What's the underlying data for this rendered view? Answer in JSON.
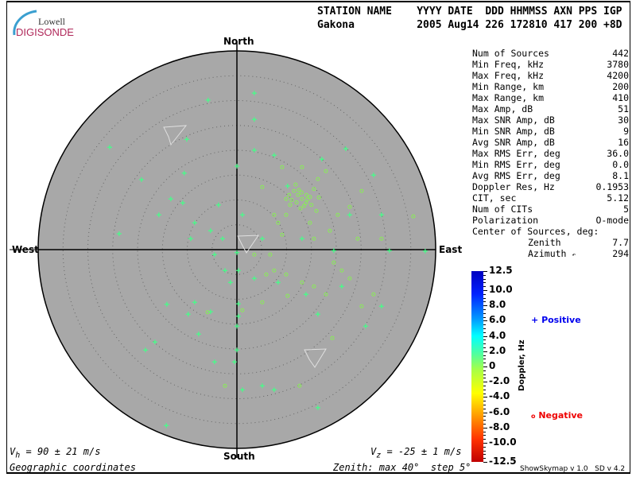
{
  "logo": {
    "line1": "Lowell",
    "line2": "DIGISONDE"
  },
  "header": {
    "labels": "STATION NAME    YYYY DATE  DDD HHMMSS AXN PPS IGP",
    "values": "Gakona          2005 Aug14 226 172810 417 200 +8D"
  },
  "stats": [
    {
      "label": "Num of Sources",
      "value": "442"
    },
    {
      "label": "Min Freq, kHz",
      "value": "3780"
    },
    {
      "label": "Max Freq, kHz",
      "value": "4200"
    },
    {
      "label": "Min Range, km",
      "value": "200"
    },
    {
      "label": "Max Range, km",
      "value": "410"
    },
    {
      "label": "Max Amp, dB",
      "value": "51"
    },
    {
      "label": "Max SNR Amp, dB",
      "value": "30"
    },
    {
      "label": "Min SNR Amp, dB",
      "value": "9"
    },
    {
      "label": "Avg SNR Amp, dB",
      "value": "16"
    },
    {
      "label": "Max RMS Err, deg",
      "value": "36.0"
    },
    {
      "label": "Min RMS Err, deg",
      "value": "0.0"
    },
    {
      "label": "Avg RMS Err, deg",
      "value": "8.1"
    },
    {
      "label": "Doppler Res, Hz",
      "value": "0.1953"
    },
    {
      "label": "CIT, sec",
      "value": "5.12"
    },
    {
      "label": "Num of CITs",
      "value": "5"
    },
    {
      "label": "Polarization",
      "value": "O-mode"
    }
  ],
  "center": {
    "title": "Center of Sources, deg:",
    "zenith_label": "Zenith",
    "zenith": "7.7",
    "azimuth_label": "Azimuth",
    "azimuth": "294"
  },
  "footer": {
    "vh": "= 90 ± 21 m/s",
    "vh_sym": "V",
    "vh_sub": "h",
    "vz": "= -25 ± 1 m/s",
    "vz_sym": "V",
    "vz_sub": "z",
    "coords": "Geographic coordinates",
    "zenith_info": "Zenith: max 40°  step 5°",
    "version": "ShowSkymap v 1.0   SD v 4.2"
  },
  "chart_data": {
    "type": "scatter",
    "projection": "polar sky map (east/north zenith-angle components, deg)",
    "directions": {
      "north": "North",
      "south": "South",
      "east": "East",
      "west": "West"
    },
    "zenith_max": 40,
    "zenith_step": 5,
    "colorbar": {
      "label": "Doppler, Hz",
      "range": [
        -12.5,
        12.5
      ],
      "ticks": [
        "12.5",
        "10.0",
        "8.0",
        "6.0",
        "4.0",
        "2.0",
        "0",
        "-2.0",
        "-4.0",
        "-6.0",
        "-8.0",
        "-10.0",
        "-12.5"
      ]
    },
    "legend": {
      "positive": "Positive",
      "negative": "Negative",
      "positive_color": "#0000ee",
      "negative_color": "#ee0000"
    },
    "colors": {
      "disk": "#a8a8a8",
      "positive_point": "#44ff88",
      "negative_point": "#88ee55"
    },
    "positive": [
      [
        -25.6,
        20.6
      ],
      [
        -19.2,
        14.1
      ],
      [
        -23.7,
        3.2
      ],
      [
        -15.7,
        7.0
      ],
      [
        -10.1,
        22.2
      ],
      [
        -5.8,
        30.1
      ],
      [
        3.5,
        31.5
      ],
      [
        0,
        16.8
      ],
      [
        3.5,
        20.0
      ],
      [
        7.5,
        19.0
      ],
      [
        10.2,
        12.8
      ],
      [
        0,
        -0.6
      ],
      [
        -5.3,
        3.8
      ],
      [
        -8.5,
        5.4
      ],
      [
        -2.9,
        2.2
      ],
      [
        -4.5,
        -1.0
      ],
      [
        -9.3,
        2.2
      ],
      [
        0.3,
        -4.2
      ],
      [
        -1.3,
        -6.6
      ],
      [
        3.5,
        -5.8
      ],
      [
        8.3,
        -6.6
      ],
      [
        5.1,
        2.2
      ],
      [
        -8.5,
        -10.6
      ],
      [
        -9.8,
        -13.0
      ],
      [
        -14.1,
        -11.0
      ],
      [
        -5.3,
        -12.5
      ],
      [
        0,
        -15.4
      ],
      [
        0,
        -20.2
      ],
      [
        -0.5,
        -22.6
      ],
      [
        -4.5,
        -22.6
      ],
      [
        1.1,
        -28.2
      ],
      [
        5.1,
        -27.4
      ],
      [
        7.5,
        -28.2
      ],
      [
        16.3,
        -31.8
      ],
      [
        -14.2,
        -35.4
      ],
      [
        -18.4,
        -20.2
      ],
      [
        -16.5,
        -18.6
      ],
      [
        -7.7,
        -17.0
      ],
      [
        -2.4,
        -4.2
      ],
      [
        13.1,
        2.2
      ],
      [
        19.5,
        -0.2
      ],
      [
        22.7,
        7.0
      ],
      [
        29.1,
        7.0
      ],
      [
        30.7,
        -0.2
      ],
      [
        37.9,
        -0.3
      ],
      [
        27.5,
        15.0
      ],
      [
        21.9,
        20.3
      ],
      [
        17.1,
        18.2
      ],
      [
        13.9,
        -9.0
      ],
      [
        16.3,
        -13.0
      ],
      [
        25.9,
        -15.4
      ],
      [
        29.1,
        -11.4
      ],
      [
        21.1,
        -7.4
      ],
      [
        3.5,
        26.2
      ],
      [
        -10.9,
        9.4
      ],
      [
        -13.3,
        10.2
      ],
      [
        -10.6,
        15.4
      ],
      [
        0.3,
        -10.9
      ],
      [
        0.3,
        -13.4
      ],
      [
        -3.7,
        9.0
      ],
      [
        1.1,
        7.0
      ]
    ],
    "negative": [
      [
        11.5,
        11.8
      ],
      [
        12.3,
        11.0
      ],
      [
        13.1,
        10.2
      ],
      [
        13.9,
        9.4
      ],
      [
        12.8,
        8.3
      ],
      [
        14.7,
        10.6
      ],
      [
        10.7,
        9.0
      ],
      [
        11.8,
        13.1
      ],
      [
        15.5,
        12.2
      ],
      [
        16.0,
        7.8
      ],
      [
        9.9,
        7.0
      ],
      [
        8.3,
        5.4
      ],
      [
        9.1,
        3.0
      ],
      [
        6.7,
        -1.0
      ],
      [
        7.5,
        -4.2
      ],
      [
        9.9,
        -5.0
      ],
      [
        13.1,
        -6.6
      ],
      [
        15.5,
        -7.4
      ],
      [
        17.9,
        -9.0
      ],
      [
        19.5,
        -2.6
      ],
      [
        21.1,
        -4.2
      ],
      [
        22.7,
        -5.8
      ],
      [
        25.1,
        -11.4
      ],
      [
        27.5,
        -9.0
      ],
      [
        15.5,
        2.2
      ],
      [
        18.7,
        3.8
      ],
      [
        20.3,
        7.0
      ],
      [
        22.7,
        8.6
      ],
      [
        25.1,
        11.8
      ],
      [
        24.3,
        2.2
      ],
      [
        35.5,
        6.7
      ],
      [
        29.1,
        2.2
      ],
      [
        5.1,
        12.6
      ],
      [
        9.1,
        16.6
      ],
      [
        13.1,
        16.6
      ],
      [
        17.9,
        15.8
      ],
      [
        7.5,
        7.0
      ],
      [
        9.9,
        10.2
      ],
      [
        14.7,
        5.4
      ],
      [
        16.3,
        14.2
      ],
      [
        3.5,
        -1.0
      ],
      [
        5.9,
        -5.0
      ],
      [
        19.2,
        -17.8
      ],
      [
        12.6,
        -27.4
      ],
      [
        -2.4,
        -27.4
      ],
      [
        -5.9,
        -12.6
      ],
      [
        1.1,
        -12.2
      ],
      [
        5.1,
        -10.6
      ],
      [
        10.2,
        -9.3
      ],
      [
        12,
        9.5
      ],
      [
        14,
        11
      ],
      [
        13.5,
        8.8
      ],
      [
        11,
        10
      ],
      [
        15,
        9
      ],
      [
        12.5,
        12
      ],
      [
        14.2,
        10.1
      ],
      [
        13,
        11.5
      ],
      [
        16.5,
        10.5
      ],
      [
        10.5,
        11
      ]
    ]
  }
}
